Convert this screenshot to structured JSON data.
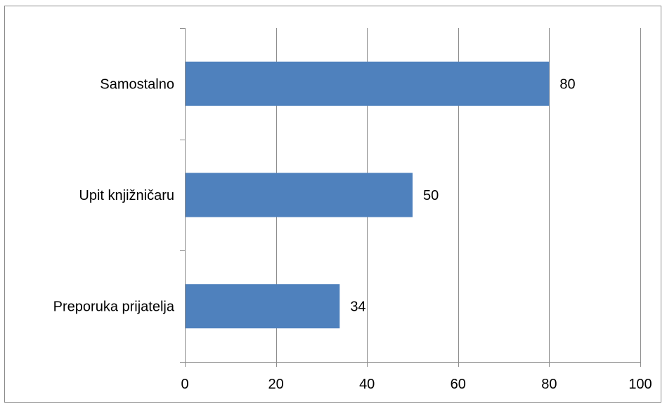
{
  "chart_data": {
    "type": "bar",
    "orientation": "horizontal",
    "categories": [
      "Samostalno",
      "Upit knjižničaru",
      "Preporuka prijatelja"
    ],
    "values": [
      80,
      50,
      34
    ],
    "data_labels": [
      "80",
      "50",
      "34"
    ],
    "xlim": [
      0,
      100
    ],
    "x_ticks": [
      0,
      20,
      40,
      60,
      80,
      100
    ],
    "x_tick_labels": [
      "0",
      "20",
      "40",
      "60",
      "80",
      "100"
    ],
    "grid": true,
    "legend": false,
    "bar_color": "#4f81bd",
    "gridline_color": "#8c8c8c"
  }
}
